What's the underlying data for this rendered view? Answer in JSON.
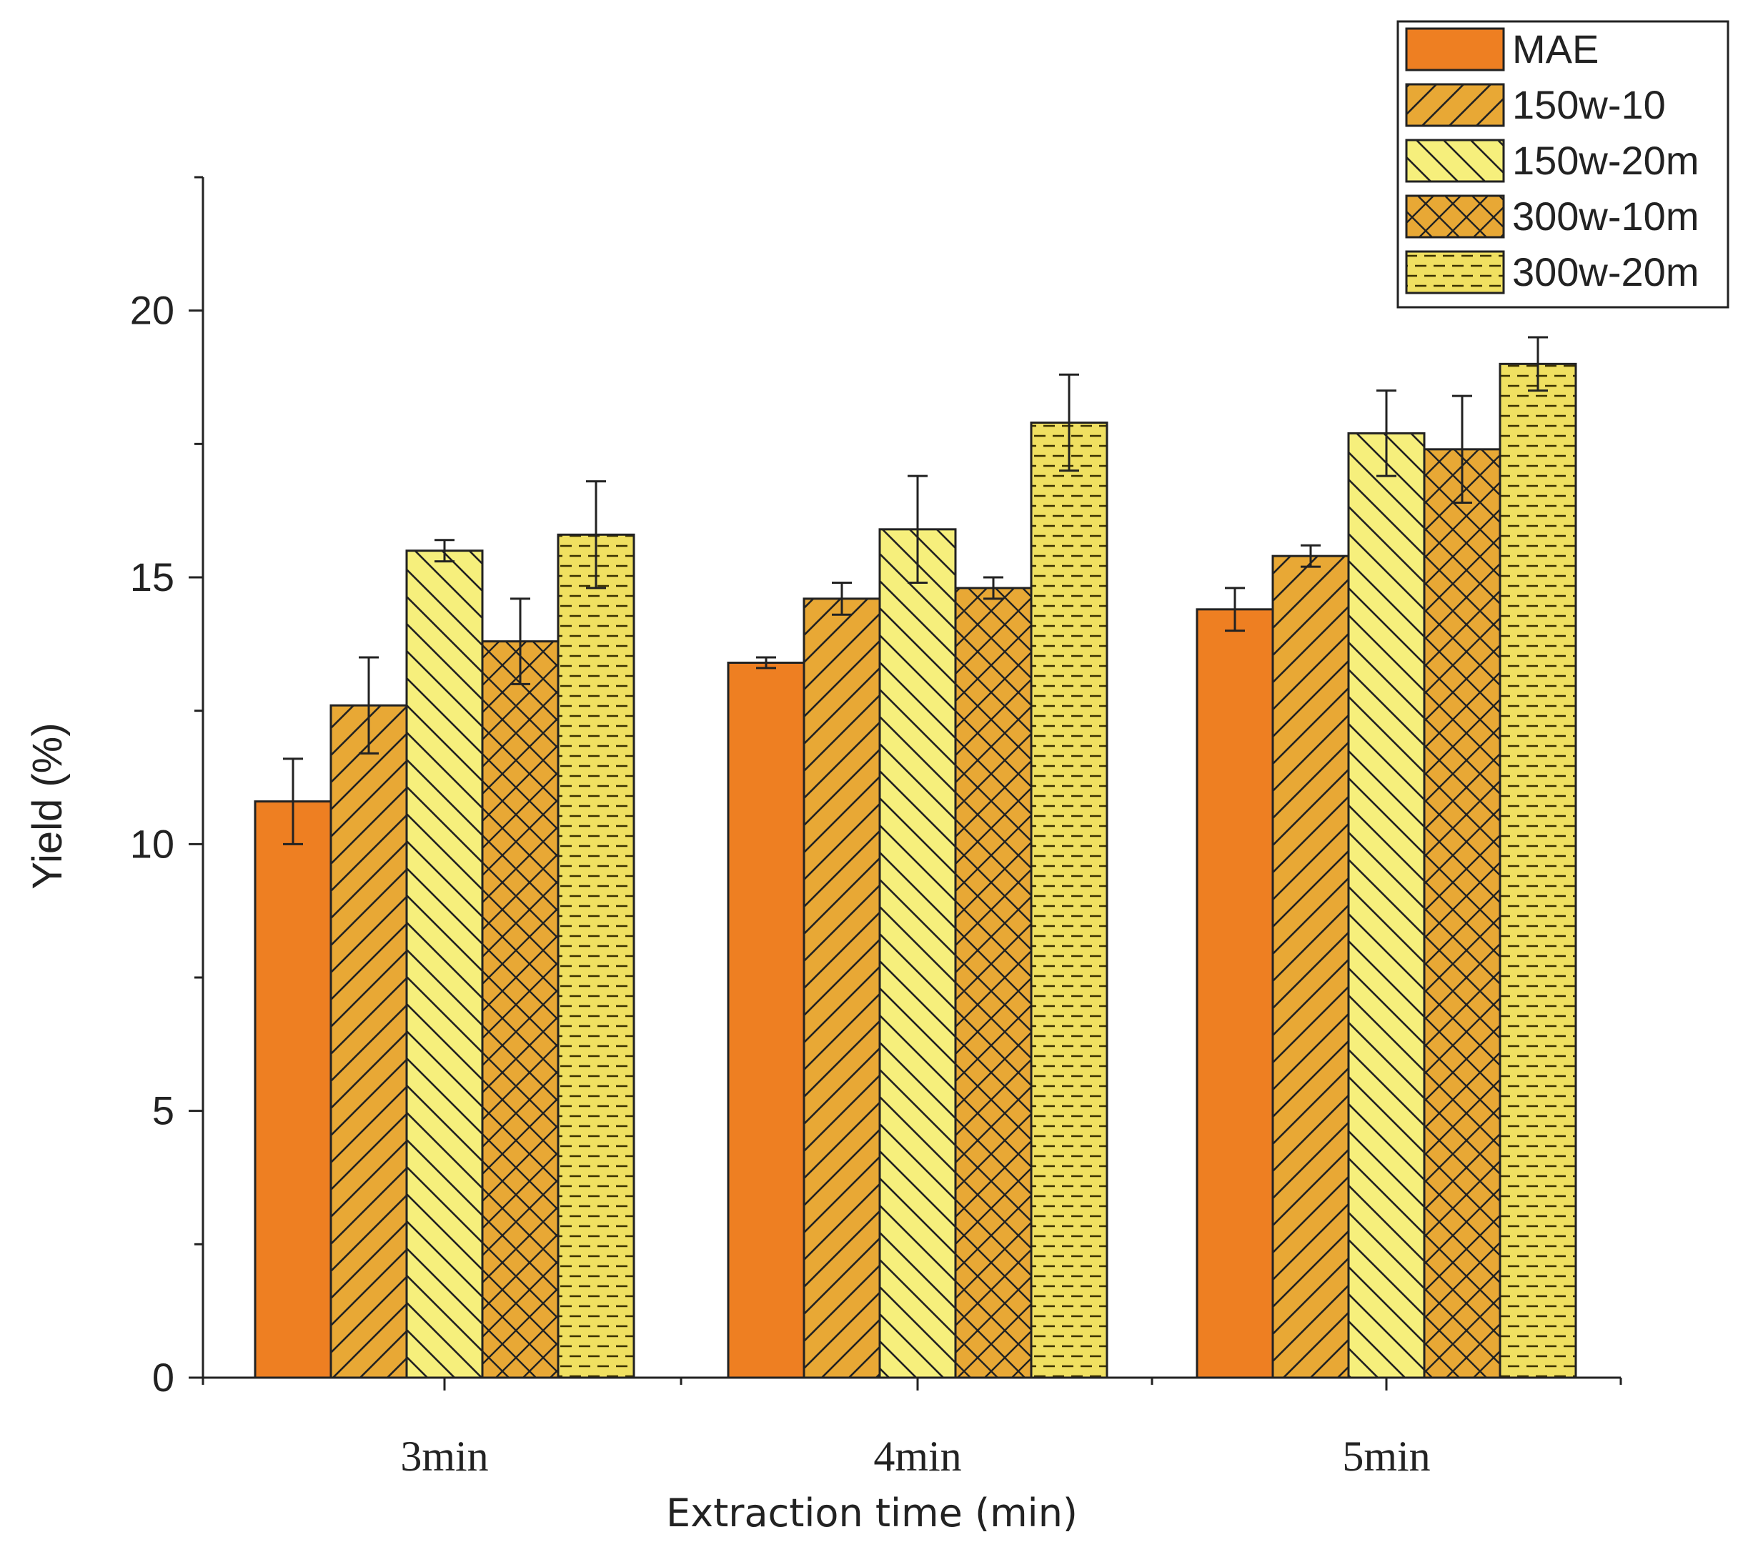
{
  "chart_data": {
    "type": "bar",
    "categories": [
      "3min",
      "4min",
      "5min"
    ],
    "xlabel": "Extraction time (min)",
    "ylabel": "Yield (%)",
    "ylim": [
      0,
      22.5
    ],
    "yticks": [
      0,
      5,
      10,
      15,
      20
    ],
    "ytick_labels": [
      "0",
      "5",
      "10",
      "15",
      "20"
    ],
    "legend_position": "top-right",
    "grid": false,
    "series": [
      {
        "name": "MAE",
        "values": [
          10.8,
          13.4,
          14.4
        ],
        "errors": [
          0.8,
          0.1,
          0.4
        ],
        "color": "#ee7f22",
        "pattern": "solid"
      },
      {
        "name": "150w-10",
        "values": [
          12.6,
          14.6,
          15.4
        ],
        "errors": [
          0.9,
          0.3,
          0.2
        ],
        "color": "#e8a835",
        "pattern": "diag-right"
      },
      {
        "name": "150w-20m",
        "values": [
          15.5,
          15.9,
          17.7
        ],
        "errors": [
          0.2,
          1.0,
          0.8
        ],
        "color": "#f6ef7c",
        "pattern": "diag-left"
      },
      {
        "name": "300w-10m",
        "values": [
          13.8,
          14.8,
          17.4
        ],
        "errors": [
          0.8,
          0.2,
          1.0
        ],
        "color": "#e8a835",
        "pattern": "cross"
      },
      {
        "name": "300w-20m",
        "values": [
          15.8,
          17.9,
          19.0
        ],
        "errors": [
          1.0,
          0.9,
          0.5
        ],
        "color": "#f0e061",
        "pattern": "dash"
      }
    ]
  }
}
